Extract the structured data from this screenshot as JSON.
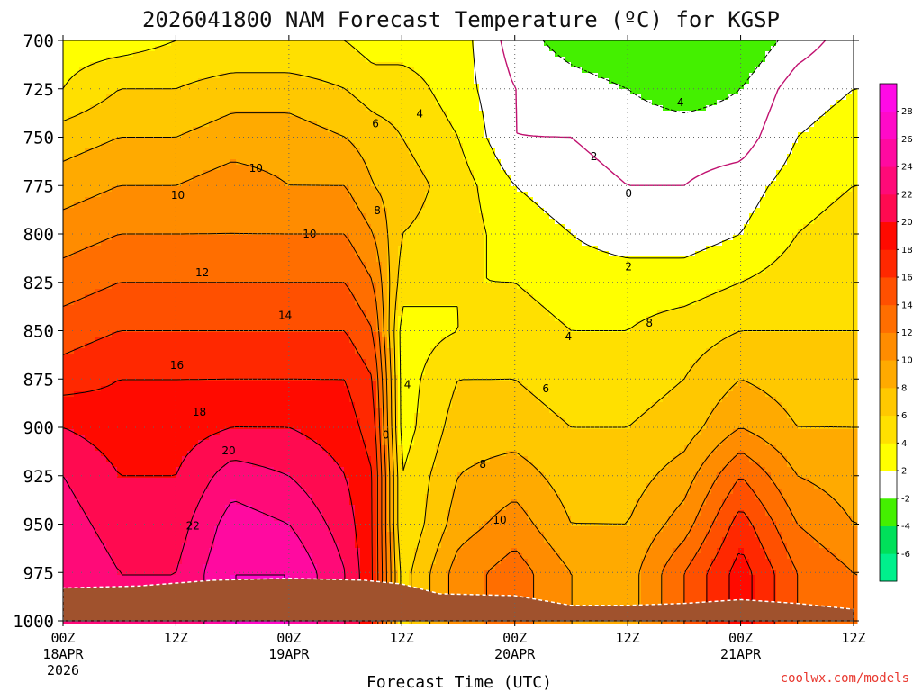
{
  "chart_data": {
    "type": "heatmap",
    "title": "2026041800 NAM Forecast Temperature (ºC) for KGSP",
    "xlabel": "Forecast Time (UTC)",
    "ylabel": "",
    "credit": "coolwx.com/models",
    "y_axis": {
      "unit": "hPa",
      "ticks": [
        700,
        725,
        750,
        775,
        800,
        825,
        850,
        875,
        900,
        925,
        950,
        975,
        1000
      ],
      "range": [
        700,
        1000
      ]
    },
    "x_axis": {
      "range_hours": [
        0,
        84
      ],
      "ticks": [
        {
          "hour": 0,
          "label": "00Z",
          "date": "18APR",
          "year": "2026"
        },
        {
          "hour": 12,
          "label": "12Z",
          "date": "",
          "year": ""
        },
        {
          "hour": 24,
          "label": "00Z",
          "date": "19APR",
          "year": ""
        },
        {
          "hour": 36,
          "label": "12Z",
          "date": "",
          "year": ""
        },
        {
          "hour": 48,
          "label": "00Z",
          "date": "20APR",
          "year": ""
        },
        {
          "hour": 60,
          "label": "12Z",
          "date": "",
          "year": ""
        },
        {
          "hour": 72,
          "label": "00Z",
          "date": "21APR",
          "year": ""
        },
        {
          "hour": 84,
          "label": "12Z",
          "date": "",
          "year": ""
        }
      ]
    },
    "grid": true,
    "colorbar": {
      "position": "right",
      "levels": [
        -8,
        -6,
        -4,
        -2,
        2,
        4,
        6,
        8,
        10,
        12,
        14,
        16,
        18,
        20,
        22,
        24,
        26,
        28,
        30
      ],
      "tick_labels": [
        "-6",
        "-4",
        "-2",
        "2",
        "4",
        "6",
        "8",
        "10",
        "12",
        "14",
        "16",
        "18",
        "20",
        "22",
        "24",
        "26",
        "28"
      ],
      "colors": [
        "#00f08c",
        "#00e05a",
        "#44f000",
        "#ffffff",
        "#ffff00",
        "#ffe000",
        "#ffc800",
        "#ffaa00",
        "#ff8c00",
        "#ff6e00",
        "#ff5000",
        "#ff2800",
        "#ff0a00",
        "#ff0a50",
        "#ff0a78",
        "#ff0aa0",
        "#ff0ac8",
        "#ff0ae6"
      ]
    },
    "columns": [
      {
        "hour": 0,
        "temps": [
          3,
          4,
          7,
          9,
          11,
          13,
          15,
          17,
          20,
          22,
          23,
          24
        ]
      },
      {
        "hour": 6,
        "temps": [
          3,
          6,
          8,
          10,
          12,
          14,
          16,
          18,
          19,
          20,
          21,
          22
        ]
      },
      {
        "hour": 12,
        "temps": [
          4,
          6,
          8,
          10,
          12,
          14,
          16,
          18,
          19,
          20,
          21,
          22
        ]
      },
      {
        "hour": 18,
        "temps": [
          4,
          7,
          9,
          11,
          12,
          14,
          16,
          18,
          20,
          23,
          25,
          26
        ]
      },
      {
        "hour": 24,
        "temps": [
          4,
          7,
          9,
          10,
          12,
          14,
          16,
          18,
          20,
          22,
          24,
          26
        ]
      },
      {
        "hour": 30,
        "temps": [
          4,
          6,
          8,
          10,
          12,
          14,
          16,
          18,
          19,
          20,
          21,
          22
        ]
      },
      {
        "hour": 33,
        "temps": [
          3,
          5,
          7,
          8,
          10,
          12,
          14,
          16,
          17,
          18,
          18,
          18
        ]
      },
      {
        "hour": 36,
        "temps": [
          3,
          5,
          6,
          7,
          6,
          5,
          3,
          3,
          3,
          4,
          4,
          5
        ]
      },
      {
        "hour": 42,
        "temps": [
          3,
          3,
          4,
          5,
          5,
          4,
          4,
          6,
          7,
          8,
          9,
          11
        ]
      },
      {
        "hour": 48,
        "temps": [
          -1,
          0,
          0,
          2,
          3,
          4,
          5,
          6,
          7,
          9,
          11,
          13
        ]
      },
      {
        "hour": 54,
        "temps": [
          -3,
          -1,
          0,
          1,
          2,
          3,
          4,
          5,
          6,
          7,
          8,
          10
        ]
      },
      {
        "hour": 60,
        "temps": [
          -4,
          -2,
          -1,
          0,
          1,
          3,
          4,
          5,
          6,
          7,
          8,
          9
        ]
      },
      {
        "hour": 66,
        "temps": [
          -4,
          -3,
          -1,
          0,
          1,
          3,
          5,
          6,
          7,
          9,
          11,
          14
        ]
      },
      {
        "hour": 72,
        "temps": [
          -4,
          -2,
          -1,
          1,
          2,
          4,
          6,
          8,
          10,
          14,
          17,
          19
        ]
      },
      {
        "hour": 78,
        "temps": [
          -1,
          1,
          2,
          3,
          4,
          5,
          6,
          7,
          8,
          10,
          12,
          14
        ]
      },
      {
        "hour": 84,
        "temps": [
          1,
          2,
          3,
          4,
          5,
          5,
          6,
          7,
          8,
          9,
          10,
          12
        ]
      }
    ],
    "contour_labels": [
      {
        "text": "10",
        "hour": 20.5,
        "p": 766
      },
      {
        "text": "10",
        "hour": 12.2,
        "p": 780
      },
      {
        "text": "10",
        "hour": 26.2,
        "p": 800
      },
      {
        "text": "12",
        "hour": 14.8,
        "p": 820
      },
      {
        "text": "14",
        "hour": 23.6,
        "p": 842
      },
      {
        "text": "16",
        "hour": 12.1,
        "p": 868
      },
      {
        "text": "18",
        "hour": 14.5,
        "p": 892
      },
      {
        "text": "20",
        "hour": 17.6,
        "p": 912
      },
      {
        "text": "22",
        "hour": 13.8,
        "p": 951
      },
      {
        "text": "6",
        "hour": 33.2,
        "p": 743
      },
      {
        "text": "4",
        "hour": 37.9,
        "p": 738
      },
      {
        "text": "8",
        "hour": 33.4,
        "p": 788
      },
      {
        "text": "4",
        "hour": 36.6,
        "p": 878
      },
      {
        "text": "0",
        "hour": 34.3,
        "p": 904
      },
      {
        "text": "8",
        "hour": 44.6,
        "p": 919
      },
      {
        "text": "10",
        "hour": 46.4,
        "p": 948
      },
      {
        "text": "-4",
        "hour": 65.4,
        "p": 732
      },
      {
        "text": "-2",
        "hour": 56.2,
        "p": 760
      },
      {
        "text": "0",
        "hour": 60.1,
        "p": 779
      },
      {
        "text": "2",
        "hour": 60.1,
        "p": 817
      },
      {
        "text": "4",
        "hour": 53.7,
        "p": 853
      },
      {
        "text": "6",
        "hour": 51.3,
        "p": 880
      },
      {
        "text": "8",
        "hour": 62.3,
        "p": 846
      }
    ],
    "terrain_color": "#a0522d"
  }
}
